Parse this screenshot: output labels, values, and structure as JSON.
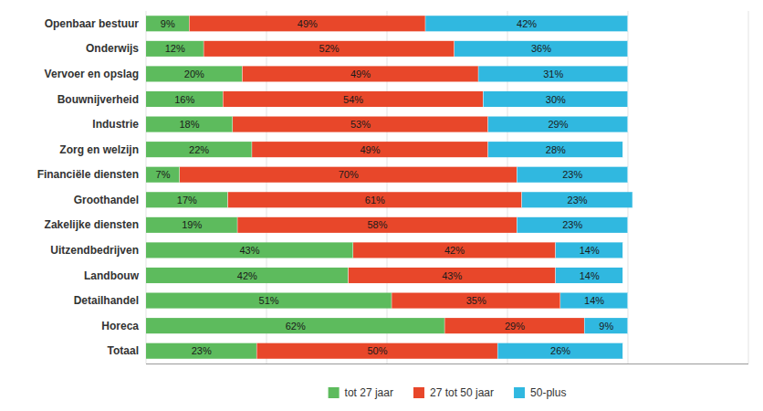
{
  "chart_data": {
    "type": "bar",
    "orientation": "horizontal",
    "stacked": true,
    "data_labels": true,
    "grid": true,
    "legend": "bottom",
    "tick_labels": "y",
    "categories": [
      "Totaal",
      "Horeca",
      "Detailhandel",
      "Landbouw",
      "Uitzendbedrijven",
      "Zakelijke diensten",
      "Groothandel",
      "Financiële diensten",
      "Zorg en welzijn",
      "Industrie",
      "Bouwnijverheid",
      "Vervoer en opslag",
      "Onderwijs",
      "Openbaar bestuur"
    ],
    "xlim": [
      0,
      125
    ],
    "xticks": [
      0,
      25,
      50,
      75,
      100,
      125
    ],
    "series": [
      {
        "name": "tot 27 jaar",
        "color": "#5DBB5D",
        "values": [
          23,
          62,
          51,
          42,
          43,
          19,
          17,
          7,
          22,
          18,
          16,
          20,
          12,
          9
        ],
        "value_labels": [
          "23%",
          "62%",
          "51%",
          "42%",
          "43%",
          "19%",
          "17%",
          "7%",
          "22%",
          "18%",
          "16%",
          "20%",
          "12%",
          "9%"
        ]
      },
      {
        "name": "27 tot 50 jaar",
        "color": "#E8472A",
        "values": [
          50,
          29,
          35,
          43,
          42,
          58,
          61,
          70,
          49,
          53,
          54,
          49,
          52,
          49
        ],
        "value_labels": [
          "50%",
          "29%",
          "35%",
          "43%",
          "42%",
          "58%",
          "61%",
          "70%",
          "49%",
          "53%",
          "54%",
          "49%",
          "52%",
          "49%"
        ]
      },
      {
        "name": "50-plus",
        "color": "#30B8E0",
        "values": [
          26,
          9,
          14,
          14,
          14,
          23,
          23,
          23,
          28,
          29,
          30,
          31,
          36,
          42
        ],
        "value_labels": [
          "26%",
          "9%",
          "14%",
          "14%",
          "14%",
          "23%",
          "23%",
          "23%",
          "28%",
          "29%",
          "30%",
          "31%",
          "36%",
          "42%"
        ]
      }
    ]
  }
}
